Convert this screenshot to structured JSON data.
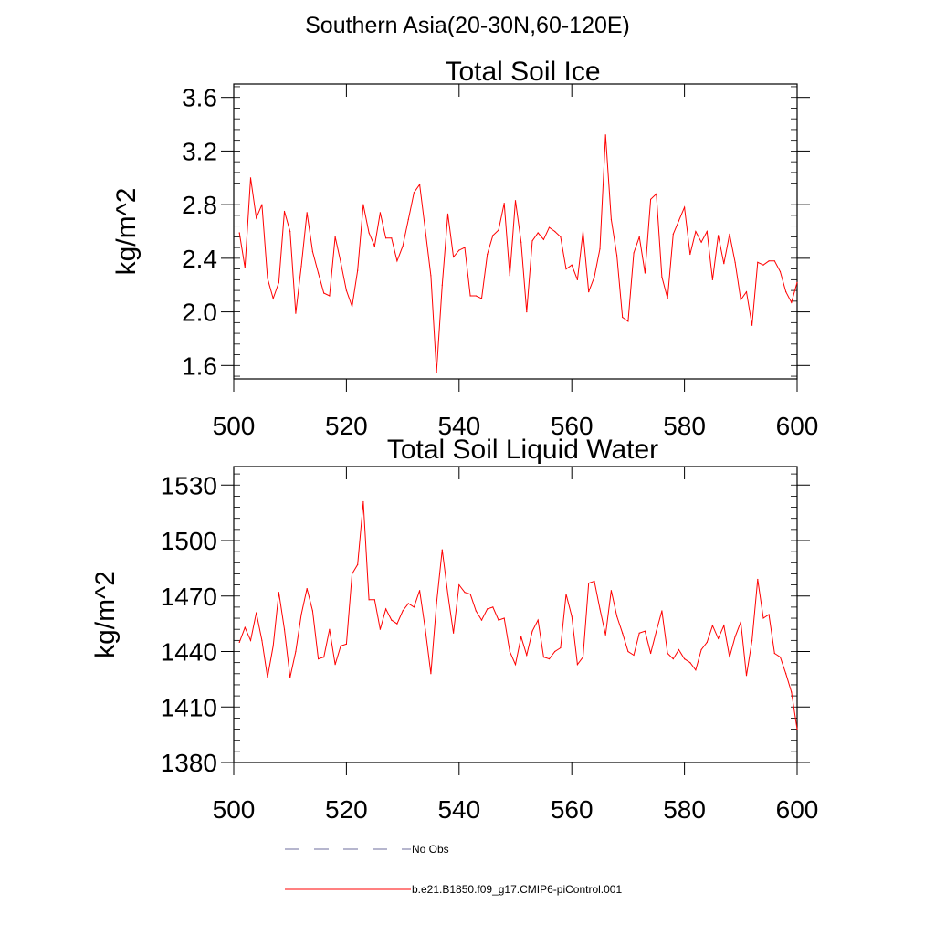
{
  "figure_title": "Southern Asia(20-30N,60-120E)",
  "colors": {
    "series": "#ff0000",
    "obs": "#6c6c9c",
    "axis": "#000000"
  },
  "legend": [
    {
      "label": "No Obs",
      "style": "dashed",
      "color": "#6c6c9c"
    },
    {
      "label": "b.e21.B1850.f09_g17.CMIP6-piControl.001",
      "style": "solid",
      "color": "#ff0000"
    }
  ],
  "chart_data": [
    {
      "type": "line",
      "title": "Total Soil Ice",
      "xlabel": "",
      "ylabel": "kg/m^2",
      "xlim": [
        500,
        600
      ],
      "ylim": [
        1.5,
        3.7
      ],
      "xticks": [
        500,
        520,
        540,
        560,
        580,
        600
      ],
      "xtick_labels": [
        "500",
        "520",
        "540",
        "560",
        "580",
        "600"
      ],
      "yticks": [
        1.6,
        2.0,
        2.4,
        2.8,
        3.2,
        3.6
      ],
      "ytick_labels": [
        "1.6",
        "2.0",
        "2.4",
        "2.8",
        "3.2",
        "3.6"
      ],
      "series": [
        {
          "name": "b.e21.B1850.f09_g17.CMIP6-piControl.001",
          "x": [
            501,
            502,
            503,
            504,
            505,
            506,
            507,
            508,
            509,
            510,
            511,
            512,
            513,
            514,
            515,
            516,
            517,
            518,
            519,
            520,
            521,
            522,
            523,
            524,
            525,
            526,
            527,
            528,
            529,
            530,
            531,
            532,
            533,
            534,
            535,
            536,
            537,
            538,
            539,
            540,
            541,
            542,
            543,
            544,
            545,
            546,
            547,
            548,
            549,
            550,
            551,
            552,
            553,
            554,
            555,
            556,
            557,
            558,
            559,
            560,
            561,
            562,
            563,
            564,
            565,
            566,
            567,
            568,
            569,
            570,
            571,
            572,
            573,
            574,
            575,
            576,
            577,
            578,
            579,
            580,
            581,
            582,
            583,
            584,
            585,
            586,
            587,
            588,
            589,
            590,
            591,
            592,
            593,
            594,
            595,
            596,
            597,
            598,
            599,
            600
          ],
          "values": [
            2.59,
            2.33,
            3.0,
            2.7,
            2.8,
            2.25,
            2.1,
            2.22,
            2.75,
            2.6,
            1.99,
            2.34,
            2.74,
            2.45,
            2.29,
            2.14,
            2.12,
            2.56,
            2.37,
            2.16,
            2.04,
            2.31,
            2.8,
            2.59,
            2.49,
            2.74,
            2.55,
            2.55,
            2.38,
            2.49,
            2.69,
            2.89,
            2.95,
            2.61,
            2.27,
            1.55,
            2.2,
            2.73,
            2.41,
            2.46,
            2.48,
            2.12,
            2.12,
            2.1,
            2.43,
            2.57,
            2.61,
            2.81,
            2.27,
            2.83,
            2.52,
            2.0,
            2.53,
            2.59,
            2.54,
            2.63,
            2.6,
            2.56,
            2.32,
            2.35,
            2.24,
            2.6,
            2.15,
            2.26,
            2.47,
            3.32,
            2.69,
            2.42,
            1.96,
            1.93,
            2.44,
            2.56,
            2.29,
            2.84,
            2.88,
            2.26,
            2.1,
            2.58,
            2.68,
            2.78,
            2.43,
            2.6,
            2.52,
            2.6,
            2.24,
            2.57,
            2.36,
            2.58,
            2.37,
            2.09,
            2.15,
            1.9,
            2.37,
            2.35,
            2.38,
            2.38,
            2.3,
            2.15,
            2.07,
            2.22
          ]
        }
      ]
    },
    {
      "type": "line",
      "title": "Total Soil Liquid Water",
      "xlabel": "",
      "ylabel": "kg/m^2",
      "xlim": [
        500,
        600
      ],
      "ylim": [
        1380,
        1540
      ],
      "xticks": [
        500,
        520,
        540,
        560,
        580,
        600
      ],
      "xtick_labels": [
        "500",
        "520",
        "540",
        "560",
        "580",
        "600"
      ],
      "yticks": [
        1380,
        1410,
        1440,
        1470,
        1500,
        1530
      ],
      "ytick_labels": [
        "1380",
        "1410",
        "1440",
        "1470",
        "1500",
        "1530"
      ],
      "series": [
        {
          "name": "b.e21.B1850.f09_g17.CMIP6-piControl.001",
          "x": [
            501,
            502,
            503,
            504,
            505,
            506,
            507,
            508,
            509,
            510,
            511,
            512,
            513,
            514,
            515,
            516,
            517,
            518,
            519,
            520,
            521,
            522,
            523,
            524,
            525,
            526,
            527,
            528,
            529,
            530,
            531,
            532,
            533,
            534,
            535,
            536,
            537,
            538,
            539,
            540,
            541,
            542,
            543,
            544,
            545,
            546,
            547,
            548,
            549,
            550,
            551,
            552,
            553,
            554,
            555,
            556,
            557,
            558,
            559,
            560,
            561,
            562,
            563,
            564,
            565,
            566,
            567,
            568,
            569,
            570,
            571,
            572,
            573,
            574,
            575,
            576,
            577,
            578,
            579,
            580,
            581,
            582,
            583,
            584,
            585,
            586,
            587,
            588,
            589,
            590,
            591,
            592,
            593,
            594,
            595,
            596,
            597,
            598,
            599,
            600
          ],
          "values": [
            1445,
            1453,
            1446,
            1461,
            1446,
            1426,
            1443,
            1472,
            1452,
            1426,
            1440,
            1460,
            1474,
            1462,
            1436,
            1437,
            1452,
            1433,
            1443,
            1444,
            1482,
            1487,
            1521,
            1468,
            1468,
            1452,
            1463,
            1457,
            1455,
            1462,
            1466,
            1464,
            1473,
            1452,
            1428,
            1466,
            1495,
            1471,
            1450,
            1476,
            1472,
            1471,
            1462,
            1457,
            1463,
            1464,
            1457,
            1458,
            1440,
            1433,
            1448,
            1438,
            1451,
            1457,
            1437,
            1436,
            1440,
            1442,
            1471,
            1459,
            1433,
            1437,
            1477,
            1478,
            1463,
            1449,
            1473,
            1459,
            1450,
            1440,
            1438,
            1450,
            1451,
            1439,
            1451,
            1462,
            1439,
            1436,
            1441,
            1436,
            1434,
            1430,
            1441,
            1445,
            1454,
            1447,
            1454,
            1437,
            1448,
            1456,
            1427,
            1446,
            1479,
            1458,
            1460,
            1439,
            1437,
            1428,
            1418,
            1398
          ]
        }
      ]
    }
  ]
}
